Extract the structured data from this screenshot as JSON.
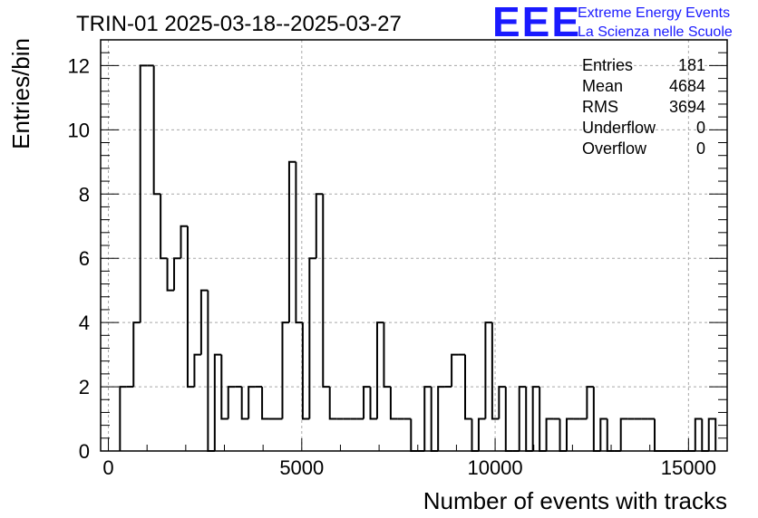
{
  "chart_data": {
    "type": "histogram",
    "title": "TRIN-01 2025-03-18--2025-03-27",
    "xlabel": "Number of events with tracks",
    "ylabel": "Entries/bin",
    "xlim": [
      -200,
      16000
    ],
    "ylim": [
      0,
      12.8
    ],
    "bin_width": 175,
    "x_ticks": [
      0,
      5000,
      10000,
      15000
    ],
    "y_ticks": [
      0,
      2,
      4,
      6,
      8,
      10,
      12
    ],
    "grid": true,
    "bins": [
      {
        "x": 300,
        "y": 2
      },
      {
        "x": 475,
        "y": 2
      },
      {
        "x": 650,
        "y": 4
      },
      {
        "x": 825,
        "y": 12
      },
      {
        "x": 1000,
        "y": 12
      },
      {
        "x": 1175,
        "y": 8
      },
      {
        "x": 1350,
        "y": 6
      },
      {
        "x": 1525,
        "y": 5
      },
      {
        "x": 1700,
        "y": 6
      },
      {
        "x": 1875,
        "y": 7
      },
      {
        "x": 2050,
        "y": 2
      },
      {
        "x": 2225,
        "y": 3
      },
      {
        "x": 2400,
        "y": 5
      },
      {
        "x": 2575,
        "y": 0
      },
      {
        "x": 2750,
        "y": 3
      },
      {
        "x": 2925,
        "y": 1
      },
      {
        "x": 3100,
        "y": 2
      },
      {
        "x": 3275,
        "y": 2
      },
      {
        "x": 3450,
        "y": 1
      },
      {
        "x": 3625,
        "y": 2
      },
      {
        "x": 3800,
        "y": 2
      },
      {
        "x": 3975,
        "y": 1
      },
      {
        "x": 4150,
        "y": 1
      },
      {
        "x": 4325,
        "y": 1
      },
      {
        "x": 4500,
        "y": 4
      },
      {
        "x": 4675,
        "y": 9
      },
      {
        "x": 4850,
        "y": 4
      },
      {
        "x": 5025,
        "y": 1
      },
      {
        "x": 5200,
        "y": 6
      },
      {
        "x": 5375,
        "y": 8
      },
      {
        "x": 5550,
        "y": 2
      },
      {
        "x": 5725,
        "y": 1
      },
      {
        "x": 5900,
        "y": 1
      },
      {
        "x": 6075,
        "y": 1
      },
      {
        "x": 6250,
        "y": 1
      },
      {
        "x": 6425,
        "y": 1
      },
      {
        "x": 6600,
        "y": 2
      },
      {
        "x": 6775,
        "y": 1
      },
      {
        "x": 6950,
        "y": 4
      },
      {
        "x": 7125,
        "y": 2
      },
      {
        "x": 7300,
        "y": 1
      },
      {
        "x": 7475,
        "y": 1
      },
      {
        "x": 7650,
        "y": 1
      },
      {
        "x": 7825,
        "y": 0
      },
      {
        "x": 8000,
        "y": 0
      },
      {
        "x": 8175,
        "y": 2
      },
      {
        "x": 8350,
        "y": 0
      },
      {
        "x": 8525,
        "y": 2
      },
      {
        "x": 8700,
        "y": 2
      },
      {
        "x": 8875,
        "y": 3
      },
      {
        "x": 9050,
        "y": 3
      },
      {
        "x": 9225,
        "y": 1
      },
      {
        "x": 9400,
        "y": 0
      },
      {
        "x": 9575,
        "y": 1
      },
      {
        "x": 9750,
        "y": 4
      },
      {
        "x": 9925,
        "y": 1
      },
      {
        "x": 10100,
        "y": 2
      },
      {
        "x": 10275,
        "y": 0
      },
      {
        "x": 10450,
        "y": 0
      },
      {
        "x": 10625,
        "y": 2
      },
      {
        "x": 10800,
        "y": 0
      },
      {
        "x": 10975,
        "y": 2
      },
      {
        "x": 11150,
        "y": 0
      },
      {
        "x": 11325,
        "y": 1
      },
      {
        "x": 11500,
        "y": 1
      },
      {
        "x": 11675,
        "y": 0
      },
      {
        "x": 11850,
        "y": 1
      },
      {
        "x": 12025,
        "y": 1
      },
      {
        "x": 12200,
        "y": 1
      },
      {
        "x": 12375,
        "y": 2
      },
      {
        "x": 12550,
        "y": 0
      },
      {
        "x": 12725,
        "y": 1
      },
      {
        "x": 12900,
        "y": 0
      },
      {
        "x": 13075,
        "y": 0
      },
      {
        "x": 13250,
        "y": 1
      },
      {
        "x": 13425,
        "y": 1
      },
      {
        "x": 13600,
        "y": 1
      },
      {
        "x": 13775,
        "y": 1
      },
      {
        "x": 13950,
        "y": 1
      },
      {
        "x": 14125,
        "y": 0
      },
      {
        "x": 14300,
        "y": 0
      },
      {
        "x": 14475,
        "y": 0
      },
      {
        "x": 14650,
        "y": 0
      },
      {
        "x": 14825,
        "y": 0
      },
      {
        "x": 15000,
        "y": 0
      },
      {
        "x": 15175,
        "y": 1
      },
      {
        "x": 15350,
        "y": 0
      },
      {
        "x": 15525,
        "y": 1
      }
    ],
    "stats": [
      {
        "label": "Entries",
        "value": "181"
      },
      {
        "label": "Mean",
        "value": "4684"
      },
      {
        "label": "RMS",
        "value": "3694"
      },
      {
        "label": "Underflow",
        "value": "0"
      },
      {
        "label": "Overflow",
        "value": "0"
      }
    ]
  },
  "logo": {
    "letters": "EEE",
    "line1": "Extreme Energy Events",
    "line2": "La Scienza nelle Scuole"
  }
}
